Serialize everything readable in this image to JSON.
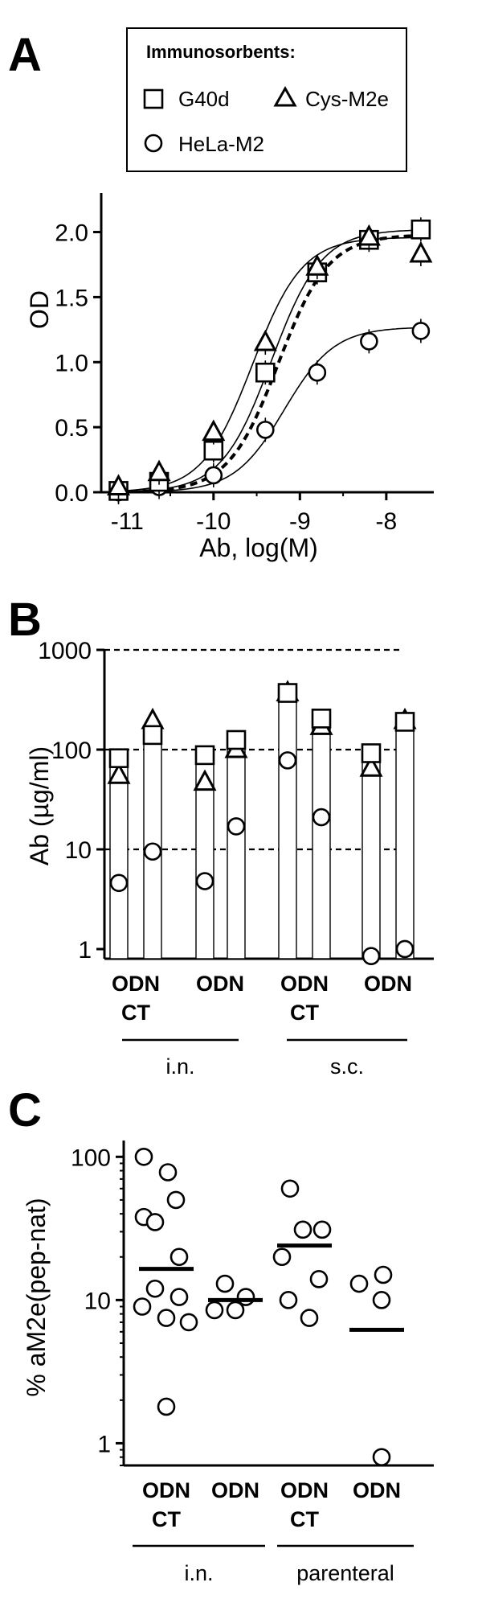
{
  "panel_labels": [
    "A",
    "B",
    "C"
  ],
  "chart_data": [
    {
      "type": "line",
      "panel": "A",
      "xlabel": "Ab, log(M)",
      "ylabel": "OD",
      "xlim": [
        -11.3,
        -7.45
      ],
      "ylim": [
        0,
        2.3
      ],
      "xticks": [
        -11,
        -10,
        -9,
        -8
      ],
      "yticks": [
        0.0,
        0.5,
        1.0,
        1.5,
        2.0
      ],
      "xtick_labels": [
        "-11",
        "-10",
        "-9",
        "-8"
      ],
      "ytick_labels": [
        "0.0",
        "0.5",
        "1.0",
        "1.5",
        "2.0"
      ],
      "legend": {
        "title": "Immunosorbents:",
        "entries": [
          "G40d",
          "Cys-M2e",
          "HeLa-M2"
        ],
        "placement": "top"
      },
      "series": [
        {
          "name": "G40d",
          "marker": "square",
          "line": "solid",
          "ec50": -9.33,
          "top": 2.02,
          "x": [
            -11.1,
            -10.63,
            -10.0,
            -9.4,
            -8.8,
            -8.2,
            -7.6
          ],
          "y": [
            0.01,
            0.08,
            0.32,
            0.92,
            1.69,
            1.94,
            2.02
          ]
        },
        {
          "name": "Cys-M2e",
          "marker": "triangle",
          "line": "solid",
          "ec50": -9.55,
          "top": 1.96,
          "x": [
            -11.1,
            -10.63,
            -10.0,
            -9.4,
            -8.8,
            -8.2,
            -7.6
          ],
          "y": [
            0.04,
            0.15,
            0.46,
            1.15,
            1.73,
            1.96,
            1.83
          ]
        },
        {
          "name": "HeLa-M2",
          "marker": "circle",
          "line": "solid",
          "ec50": -9.18,
          "top": 1.27,
          "x": [
            -11.1,
            -10.63,
            -10.0,
            -9.4,
            -8.8,
            -8.2,
            -7.6
          ],
          "y": [
            0.0,
            0.04,
            0.13,
            0.48,
            0.92,
            1.16,
            1.24
          ]
        },
        {
          "name": "",
          "marker": "none",
          "line": "dashed",
          "ec50": -9.25,
          "top": 1.98,
          "x": [],
          "y": []
        }
      ]
    },
    {
      "type": "bar",
      "panel": "B",
      "ylabel": "Ab (µg/ml)",
      "yscale": "log",
      "ylim": [
        0.8,
        1000
      ],
      "yticks": [
        1,
        10,
        100,
        1000
      ],
      "ytick_labels": [
        "1",
        "10",
        "100",
        "1000"
      ],
      "reference_lines": [
        10,
        100,
        1000
      ],
      "groups": [
        {
          "label": "ODN",
          "sublabel": "CT",
          "route": "i.n."
        },
        {
          "label": "ODN",
          "sublabel": "",
          "route": "i.n."
        },
        {
          "label": "ODN",
          "sublabel": "CT",
          "route": "s.c."
        },
        {
          "label": "ODN",
          "sublabel": "",
          "route": "s.c."
        }
      ],
      "routes": [
        "i.n.",
        "s.c."
      ],
      "bars": [
        {
          "group": 0,
          "value": 82,
          "square": 82,
          "triangle": 55,
          "circle": 4.6
        },
        {
          "group": 0,
          "value": 140,
          "square": 140,
          "triangle": 195,
          "circle": 9.5
        },
        {
          "group": 1,
          "value": 88,
          "square": 88,
          "triangle": 47,
          "circle": 4.8
        },
        {
          "group": 1,
          "value": 125,
          "square": 125,
          "triangle": 100,
          "circle": 17
        },
        {
          "group": 2,
          "value": 370,
          "square": 370,
          "triangle": 370,
          "circle": 78
        },
        {
          "group": 2,
          "value": 205,
          "square": 205,
          "triangle": 170,
          "circle": 21
        },
        {
          "group": 3,
          "value": 92,
          "square": 92,
          "triangle": 65,
          "circle": 0.85
        },
        {
          "group": 3,
          "value": 190,
          "square": 190,
          "triangle": 195,
          "circle": 1.0
        }
      ]
    },
    {
      "type": "scatter",
      "panel": "C",
      "ylabel": "% aM2e(pep-nat)",
      "yscale": "log",
      "ylim": [
        0.7,
        130
      ],
      "yticks": [
        1,
        10,
        100
      ],
      "ytick_labels": [
        "1",
        "10",
        "100"
      ],
      "groups": [
        {
          "label": "ODN",
          "sublabel": "CT",
          "route": "i.n.",
          "mean": 16.5,
          "values": [
            100,
            78,
            38,
            50,
            35,
            20,
            12,
            10.5,
            9,
            7,
            7.5,
            1.8
          ]
        },
        {
          "label": "ODN",
          "sublabel": "",
          "route": "i.n.",
          "mean": 10,
          "values": [
            13,
            10.5,
            8.5,
            8.5
          ]
        },
        {
          "label": "ODN",
          "sublabel": "CT",
          "route": "parenteral",
          "mean": 24,
          "values": [
            60,
            31,
            31,
            20,
            14,
            10,
            7.5
          ]
        },
        {
          "label": "ODN",
          "sublabel": "",
          "route": "parenteral",
          "mean": 6.2,
          "values": [
            13,
            15,
            10,
            0.8
          ]
        }
      ],
      "routes": [
        "i.n.",
        "parenteral"
      ]
    }
  ]
}
